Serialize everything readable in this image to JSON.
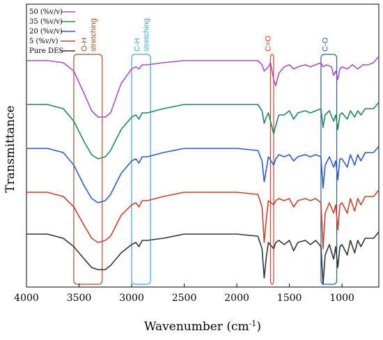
{
  "chart_data": {
    "type": "line",
    "title": "",
    "xlabel": "Wavenumber (cm",
    "xlabel_sup": "-1",
    "xlabel_end": ")",
    "ylabel": "Transmittance",
    "x_reversed": true,
    "xlim": [
      4000,
      650
    ],
    "x_ticks": [
      4000,
      3500,
      3000,
      2500,
      2000,
      1500,
      1000
    ],
    "x_tick_labels": [
      "4000",
      "3500",
      "3000",
      "2500",
      "2000",
      "1500",
      "1000"
    ],
    "y_ticks_shown": false,
    "grid": false,
    "legend_position": "top-left",
    "series": [
      {
        "name": "50 (%v/v)",
        "color": "#a64fc9",
        "offset": 0.83,
        "points": [
          [
            4000,
            0.0
          ],
          [
            3800,
            0.0
          ],
          [
            3650,
            -0.01
          ],
          [
            3550,
            -0.05
          ],
          [
            3450,
            -0.16
          ],
          [
            3380,
            -0.24
          ],
          [
            3320,
            -0.27
          ],
          [
            3250,
            -0.27
          ],
          [
            3200,
            -0.25
          ],
          [
            3100,
            -0.11
          ],
          [
            3000,
            -0.04
          ],
          [
            2960,
            -0.03
          ],
          [
            2930,
            -0.04
          ],
          [
            2900,
            -0.02
          ],
          [
            2850,
            -0.02
          ],
          [
            2700,
            -0.01
          ],
          [
            2500,
            0.0
          ],
          [
            2200,
            0.0
          ],
          [
            2000,
            0.0
          ],
          [
            1800,
            -0.0
          ],
          [
            1760,
            -0.02
          ],
          [
            1740,
            -0.05
          ],
          [
            1700,
            -0.03
          ],
          [
            1680,
            -0.01
          ],
          [
            1650,
            -0.09
          ],
          [
            1630,
            -0.12
          ],
          [
            1600,
            -0.06
          ],
          [
            1550,
            -0.03
          ],
          [
            1500,
            -0.02
          ],
          [
            1460,
            -0.04
          ],
          [
            1420,
            -0.03
          ],
          [
            1350,
            -0.02
          ],
          [
            1300,
            -0.03
          ],
          [
            1250,
            -0.02
          ],
          [
            1200,
            -0.01
          ],
          [
            1180,
            -0.03
          ],
          [
            1150,
            -0.02
          ],
          [
            1100,
            -0.03
          ],
          [
            1080,
            -0.07
          ],
          [
            1060,
            -0.05
          ],
          [
            1040,
            -0.09
          ],
          [
            1020,
            -0.04
          ],
          [
            1000,
            -0.03
          ],
          [
            950,
            -0.04
          ],
          [
            900,
            -0.02
          ],
          [
            850,
            -0.04
          ],
          [
            800,
            -0.02
          ],
          [
            750,
            -0.02
          ],
          [
            700,
            -0.01
          ],
          [
            650,
            0.02
          ]
        ]
      },
      {
        "name": "35 (%v/v)",
        "color": "#1e8a5a",
        "offset": 0.62,
        "points": [
          [
            4000,
            0.0
          ],
          [
            3800,
            0.0
          ],
          [
            3650,
            -0.02
          ],
          [
            3550,
            -0.08
          ],
          [
            3450,
            -0.18
          ],
          [
            3380,
            -0.24
          ],
          [
            3320,
            -0.26
          ],
          [
            3250,
            -0.25
          ],
          [
            3200,
            -0.22
          ],
          [
            3100,
            -0.12
          ],
          [
            3000,
            -0.06
          ],
          [
            2960,
            -0.05
          ],
          [
            2930,
            -0.07
          ],
          [
            2900,
            -0.04
          ],
          [
            2850,
            -0.04
          ],
          [
            2700,
            -0.02
          ],
          [
            2500,
            -0.0
          ],
          [
            2200,
            0.0
          ],
          [
            2000,
            0.0
          ],
          [
            1800,
            -0.0
          ],
          [
            1760,
            -0.03
          ],
          [
            1740,
            -0.09
          ],
          [
            1720,
            -0.06
          ],
          [
            1700,
            -0.04
          ],
          [
            1650,
            -0.14
          ],
          [
            1630,
            -0.1
          ],
          [
            1600,
            -0.05
          ],
          [
            1550,
            -0.05
          ],
          [
            1500,
            -0.03
          ],
          [
            1460,
            -0.07
          ],
          [
            1420,
            -0.04
          ],
          [
            1350,
            -0.03
          ],
          [
            1300,
            -0.04
          ],
          [
            1250,
            -0.03
          ],
          [
            1200,
            -0.02
          ],
          [
            1180,
            -0.11
          ],
          [
            1160,
            -0.05
          ],
          [
            1120,
            -0.03
          ],
          [
            1080,
            -0.08
          ],
          [
            1060,
            -0.05
          ],
          [
            1040,
            -0.12
          ],
          [
            1020,
            -0.05
          ],
          [
            1000,
            -0.04
          ],
          [
            950,
            -0.07
          ],
          [
            920,
            -0.03
          ],
          [
            880,
            -0.06
          ],
          [
            850,
            -0.03
          ],
          [
            820,
            -0.05
          ],
          [
            780,
            -0.02
          ],
          [
            700,
            -0.02
          ],
          [
            650,
            0.01
          ]
        ]
      },
      {
        "name": "20 (%v/v)",
        "color": "#2a5cc7",
        "offset": 0.41,
        "points": [
          [
            4000,
            0.0
          ],
          [
            3800,
            0.0
          ],
          [
            3650,
            -0.02
          ],
          [
            3550,
            -0.08
          ],
          [
            3450,
            -0.18
          ],
          [
            3380,
            -0.24
          ],
          [
            3320,
            -0.26
          ],
          [
            3250,
            -0.25
          ],
          [
            3200,
            -0.22
          ],
          [
            3100,
            -0.12
          ],
          [
            3000,
            -0.06
          ],
          [
            2960,
            -0.05
          ],
          [
            2930,
            -0.07
          ],
          [
            2900,
            -0.04
          ],
          [
            2850,
            -0.04
          ],
          [
            2700,
            -0.02
          ],
          [
            2500,
            -0.0
          ],
          [
            2200,
            0.0
          ],
          [
            2000,
            0.0
          ],
          [
            1800,
            -0.01
          ],
          [
            1760,
            -0.06
          ],
          [
            1740,
            -0.16
          ],
          [
            1720,
            -0.1
          ],
          [
            1700,
            -0.04
          ],
          [
            1650,
            -0.08
          ],
          [
            1630,
            -0.05
          ],
          [
            1600,
            -0.03
          ],
          [
            1550,
            -0.04
          ],
          [
            1500,
            -0.03
          ],
          [
            1460,
            -0.06
          ],
          [
            1420,
            -0.04
          ],
          [
            1350,
            -0.03
          ],
          [
            1300,
            -0.04
          ],
          [
            1250,
            -0.03
          ],
          [
            1200,
            -0.04
          ],
          [
            1180,
            -0.19
          ],
          [
            1160,
            -0.08
          ],
          [
            1120,
            -0.04
          ],
          [
            1080,
            -0.09
          ],
          [
            1060,
            -0.06
          ],
          [
            1040,
            -0.15
          ],
          [
            1020,
            -0.05
          ],
          [
            1000,
            -0.05
          ],
          [
            950,
            -0.09
          ],
          [
            920,
            -0.03
          ],
          [
            880,
            -0.08
          ],
          [
            850,
            -0.03
          ],
          [
            820,
            -0.06
          ],
          [
            780,
            -0.02
          ],
          [
            700,
            -0.02
          ],
          [
            650,
            0.01
          ]
        ]
      },
      {
        "name": "5 (%v/v)",
        "color": "#c8412a",
        "offset": 0.2,
        "points": [
          [
            4000,
            0.0
          ],
          [
            3800,
            0.0
          ],
          [
            3650,
            -0.02
          ],
          [
            3550,
            -0.07
          ],
          [
            3450,
            -0.16
          ],
          [
            3380,
            -0.22
          ],
          [
            3320,
            -0.24
          ],
          [
            3250,
            -0.23
          ],
          [
            3200,
            -0.21
          ],
          [
            3100,
            -0.11
          ],
          [
            3000,
            -0.06
          ],
          [
            2960,
            -0.05
          ],
          [
            2930,
            -0.07
          ],
          [
            2900,
            -0.04
          ],
          [
            2850,
            -0.04
          ],
          [
            2700,
            -0.02
          ],
          [
            2500,
            -0.0
          ],
          [
            2200,
            0.0
          ],
          [
            2000,
            0.0
          ],
          [
            1800,
            -0.01
          ],
          [
            1760,
            -0.07
          ],
          [
            1740,
            -0.24
          ],
          [
            1720,
            -0.13
          ],
          [
            1700,
            -0.04
          ],
          [
            1650,
            -0.06
          ],
          [
            1630,
            -0.04
          ],
          [
            1600,
            -0.03
          ],
          [
            1550,
            -0.04
          ],
          [
            1500,
            -0.03
          ],
          [
            1460,
            -0.07
          ],
          [
            1420,
            -0.04
          ],
          [
            1350,
            -0.03
          ],
          [
            1300,
            -0.04
          ],
          [
            1250,
            -0.03
          ],
          [
            1200,
            -0.05
          ],
          [
            1180,
            -0.27
          ],
          [
            1160,
            -0.1
          ],
          [
            1120,
            -0.05
          ],
          [
            1080,
            -0.1
          ],
          [
            1060,
            -0.06
          ],
          [
            1040,
            -0.18
          ],
          [
            1020,
            -0.06
          ],
          [
            1000,
            -0.05
          ],
          [
            950,
            -0.1
          ],
          [
            920,
            -0.03
          ],
          [
            880,
            -0.09
          ],
          [
            850,
            -0.03
          ],
          [
            820,
            -0.06
          ],
          [
            780,
            -0.02
          ],
          [
            700,
            -0.02
          ],
          [
            650,
            0.01
          ]
        ]
      },
      {
        "name": "Pure DES",
        "color": "#333333",
        "offset": 0.0,
        "points": [
          [
            4000,
            0.0
          ],
          [
            3800,
            0.0
          ],
          [
            3650,
            -0.02
          ],
          [
            3550,
            -0.06
          ],
          [
            3450,
            -0.12
          ],
          [
            3380,
            -0.16
          ],
          [
            3320,
            -0.17
          ],
          [
            3250,
            -0.17
          ],
          [
            3200,
            -0.15
          ],
          [
            3100,
            -0.09
          ],
          [
            3000,
            -0.05
          ],
          [
            2960,
            -0.04
          ],
          [
            2930,
            -0.06
          ],
          [
            2900,
            -0.03
          ],
          [
            2850,
            -0.03
          ],
          [
            2700,
            -0.02
          ],
          [
            2500,
            -0.0
          ],
          [
            2200,
            0.0
          ],
          [
            2000,
            0.0
          ],
          [
            1800,
            -0.01
          ],
          [
            1760,
            -0.07
          ],
          [
            1740,
            -0.21
          ],
          [
            1720,
            -0.11
          ],
          [
            1700,
            -0.04
          ],
          [
            1650,
            -0.07
          ],
          [
            1630,
            -0.04
          ],
          [
            1600,
            -0.03
          ],
          [
            1550,
            -0.05
          ],
          [
            1500,
            -0.03
          ],
          [
            1460,
            -0.08
          ],
          [
            1420,
            -0.04
          ],
          [
            1350,
            -0.03
          ],
          [
            1300,
            -0.05
          ],
          [
            1250,
            -0.03
          ],
          [
            1200,
            -0.06
          ],
          [
            1180,
            -0.24
          ],
          [
            1160,
            -0.1
          ],
          [
            1120,
            -0.05
          ],
          [
            1080,
            -0.12
          ],
          [
            1060,
            -0.06
          ],
          [
            1040,
            -0.16
          ],
          [
            1020,
            -0.06
          ],
          [
            1000,
            -0.05
          ],
          [
            950,
            -0.1
          ],
          [
            920,
            -0.03
          ],
          [
            880,
            -0.09
          ],
          [
            850,
            -0.03
          ],
          [
            820,
            -0.06
          ],
          [
            780,
            -0.02
          ],
          [
            700,
            -0.02
          ],
          [
            650,
            0.01
          ]
        ]
      }
    ],
    "band_annotations": [
      {
        "label_line1": "O-H",
        "label_line2": "stretching",
        "x_from": 3550,
        "x_to": 3280,
        "color": "#a0522d"
      },
      {
        "label_line1": "C-H",
        "label_line2": "stretching",
        "x_from": 3000,
        "x_to": 2820,
        "color": "#3aa8d8"
      },
      {
        "label_line1": "C=O",
        "label_line2": "",
        "x_from": 1680,
        "x_to": 1650,
        "color": "#c8412a"
      },
      {
        "label_line1": "C-O",
        "label_line2": "",
        "x_from": 1200,
        "x_to": 1050,
        "color": "#2a5c9a"
      }
    ]
  }
}
